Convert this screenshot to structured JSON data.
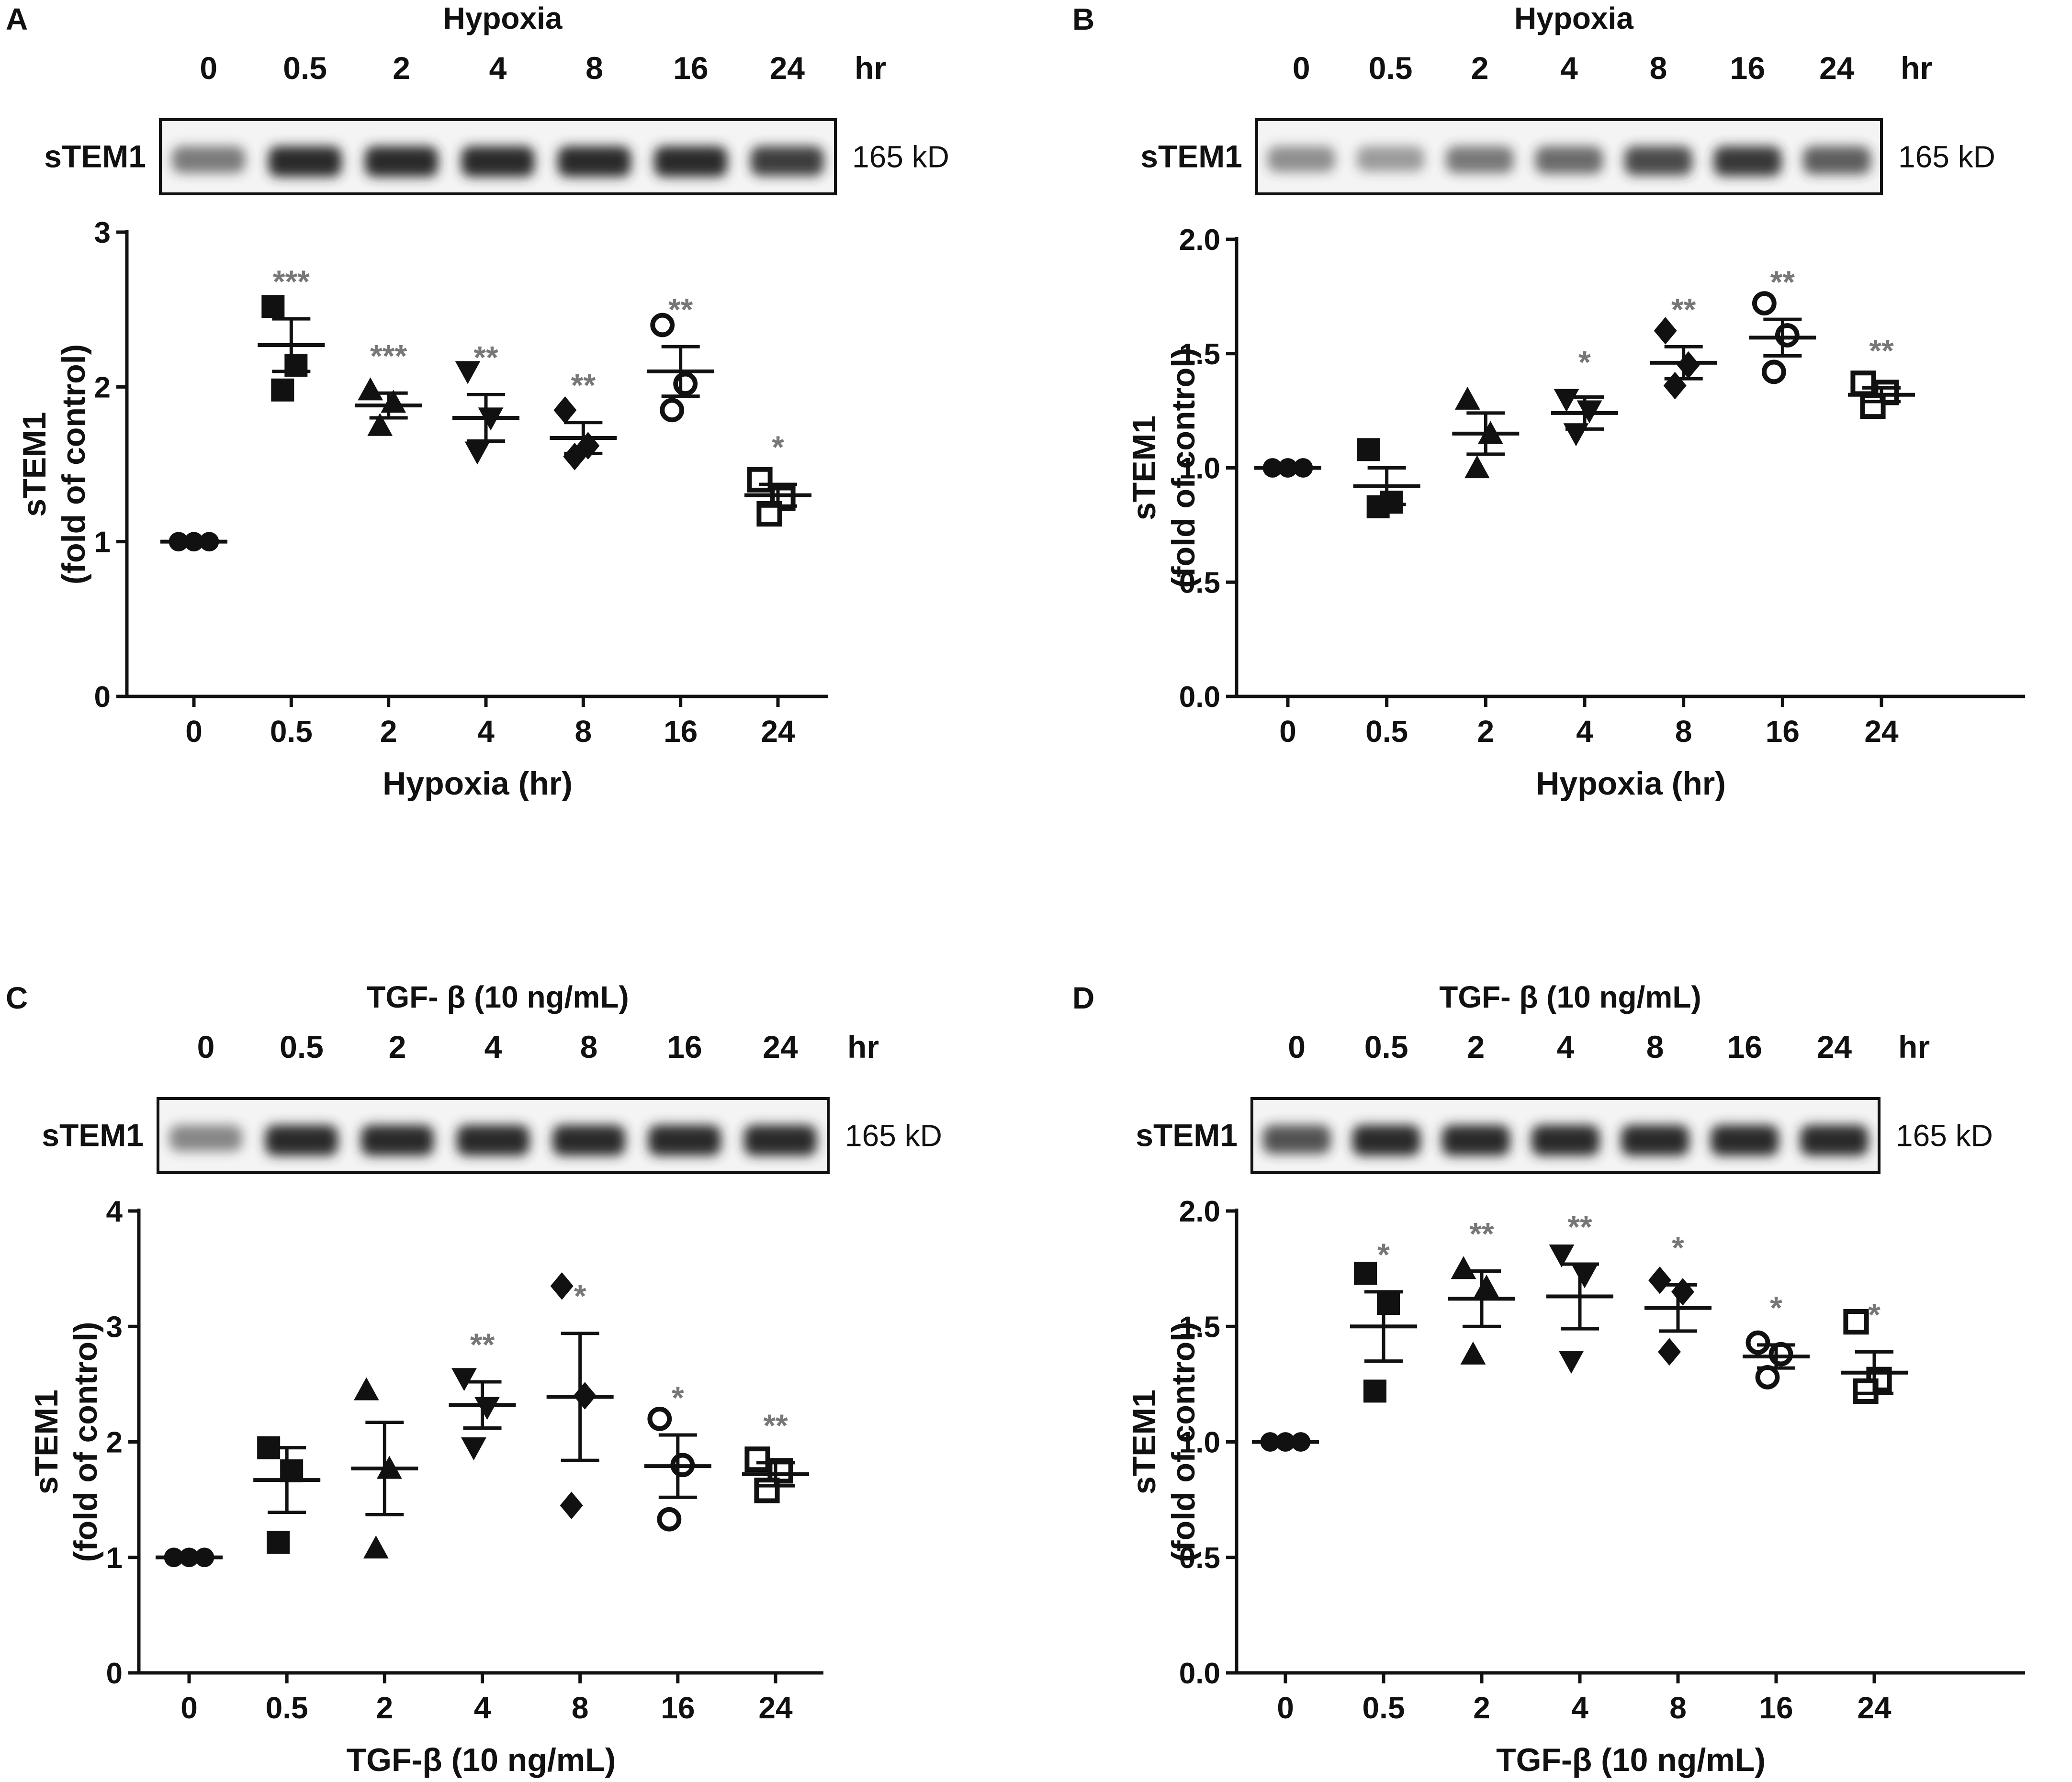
{
  "blot_label": "sTEM1",
  "blot_mw": "165 kD",
  "hr_unit": "hr",
  "blot_times": [
    "0",
    "0.5",
    "2",
    "4",
    "8",
    "16",
    "24"
  ],
  "y_title_line1": "sTEM1",
  "y_title_line2": "(fold of control)",
  "colors": {
    "ink": "#111111",
    "star": "#777777",
    "band": "#2a2a2a",
    "blot_bg": "#f4f4f4"
  },
  "chart_data": [
    {
      "panel": "A",
      "type": "scatter",
      "blot_title": "Hypoxia",
      "categories": [
        "0",
        "0.5",
        "2",
        "4",
        "8",
        "16",
        "24"
      ],
      "xlabel": "Hypoxia (hr)",
      "ylabel": "sTEM1 (fold of control)",
      "ylim": [
        0,
        3
      ],
      "yticks": [
        "0",
        "1",
        "2",
        "3"
      ],
      "markers": [
        "filled-circle",
        "filled-square",
        "filled-triangle-up",
        "filled-triangle-down",
        "filled-diamond",
        "open-circle",
        "open-square"
      ],
      "points": [
        [
          1.0,
          1.0,
          1.0
        ],
        [
          2.52,
          2.14,
          1.98
        ],
        [
          1.98,
          1.9,
          1.75
        ],
        [
          2.1,
          1.8,
          1.58
        ],
        [
          1.85,
          1.62,
          1.55
        ],
        [
          2.4,
          2.02,
          1.85
        ],
        [
          1.4,
          1.28,
          1.18
        ]
      ],
      "means": [
        1.0,
        2.27,
        1.88,
        1.8,
        1.67,
        2.1,
        1.3
      ],
      "sem": [
        0.0,
        0.17,
        0.08,
        0.15,
        0.1,
        0.16,
        0.07
      ],
      "significance": [
        "",
        "***",
        "***",
        "**",
        "**",
        "**",
        "*"
      ]
    },
    {
      "panel": "B",
      "type": "scatter",
      "blot_title": "Hypoxia",
      "categories": [
        "0",
        "0.5",
        "2",
        "4",
        "8",
        "16",
        "24"
      ],
      "xlabel": "Hypoxia (hr)",
      "ylabel": "sTEM1 (fold of control)",
      "ylim": [
        0,
        2
      ],
      "yticks": [
        "0.0",
        "0.5",
        "1.0",
        "1.5",
        "2.0"
      ],
      "markers": [
        "filled-circle",
        "filled-square",
        "filled-triangle-up",
        "filled-triangle-down",
        "filled-diamond",
        "open-circle",
        "open-square"
      ],
      "points": [
        [
          1.0,
          1.0,
          1.0
        ],
        [
          1.08,
          0.85,
          0.83
        ],
        [
          1.3,
          1.15,
          1.0
        ],
        [
          1.3,
          1.25,
          1.15
        ],
        [
          1.6,
          1.45,
          1.36
        ],
        [
          1.72,
          1.58,
          1.42
        ],
        [
          1.37,
          1.33,
          1.27
        ]
      ],
      "means": [
        1.0,
        0.92,
        1.15,
        1.24,
        1.46,
        1.57,
        1.32
      ],
      "sem": [
        0.0,
        0.08,
        0.09,
        0.07,
        0.07,
        0.08,
        0.03
      ],
      "significance": [
        "",
        "",
        "",
        "*",
        "**",
        "**",
        "**"
      ]
    },
    {
      "panel": "C",
      "type": "scatter",
      "blot_title": "TGF- β (10 ng/mL)",
      "categories": [
        "0",
        "0.5",
        "2",
        "4",
        "8",
        "16",
        "24"
      ],
      "xlabel": "TGF-β (10 ng/mL)",
      "ylabel": "sTEM1 (fold of control)",
      "ylim": [
        0,
        4
      ],
      "yticks": [
        "0",
        "1",
        "2",
        "3",
        "4"
      ],
      "markers": [
        "filled-circle",
        "filled-square",
        "filled-triangle-up",
        "filled-triangle-down",
        "filled-diamond",
        "open-circle",
        "open-square"
      ],
      "points": [
        [
          1.0,
          1.0,
          1.0
        ],
        [
          1.95,
          1.75,
          1.13
        ],
        [
          2.45,
          1.77,
          1.08
        ],
        [
          2.55,
          2.3,
          1.95
        ],
        [
          3.35,
          2.4,
          1.45
        ],
        [
          2.2,
          1.8,
          1.33
        ],
        [
          1.85,
          1.75,
          1.58
        ]
      ],
      "means": [
        1.0,
        1.67,
        1.77,
        2.32,
        2.39,
        1.79,
        1.72
      ],
      "sem": [
        0.0,
        0.28,
        0.4,
        0.2,
        0.55,
        0.27,
        0.1
      ],
      "significance": [
        "",
        "",
        "",
        "**",
        "*",
        "*",
        "**"
      ]
    },
    {
      "panel": "D",
      "type": "scatter",
      "blot_title": "TGF- β (10 ng/mL)",
      "categories": [
        "0",
        "0.5",
        "2",
        "4",
        "8",
        "16",
        "24"
      ],
      "xlabel": "TGF-β (10 ng/mL)",
      "ylabel": "sTEM1 (fold of control)",
      "ylim": [
        0,
        2
      ],
      "yticks": [
        "0.0",
        "0.5",
        "1.0",
        "1.5",
        "2.0"
      ],
      "markers": [
        "filled-circle",
        "filled-square",
        "filled-triangle-up",
        "filled-triangle-down",
        "filled-diamond",
        "open-circle",
        "open-square"
      ],
      "points": [
        [
          1.0,
          1.0,
          1.0
        ],
        [
          1.73,
          1.6,
          1.22
        ],
        [
          1.75,
          1.67,
          1.38
        ],
        [
          1.81,
          1.72,
          1.35
        ],
        [
          1.7,
          1.65,
          1.39
        ],
        [
          1.43,
          1.38,
          1.28
        ],
        [
          1.52,
          1.27,
          1.22
        ]
      ],
      "means": [
        1.0,
        1.5,
        1.62,
        1.63,
        1.58,
        1.37,
        1.3
      ],
      "sem": [
        0.0,
        0.15,
        0.12,
        0.14,
        0.1,
        0.05,
        0.09
      ],
      "significance": [
        "",
        "*",
        "**",
        "**",
        "*",
        "*",
        "*"
      ]
    }
  ]
}
